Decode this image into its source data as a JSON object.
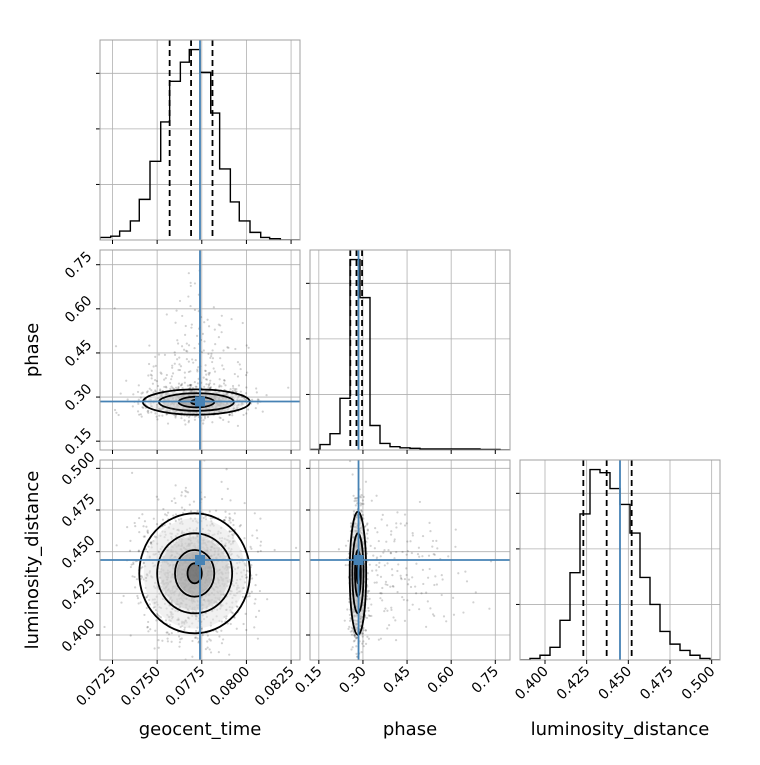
{
  "chart_data": {
    "type": "corner",
    "colors": {
      "truth": "#4682b4",
      "hist": "#000000",
      "quantile": "#000000",
      "contour": "#000000",
      "grid": "#b0b0b0",
      "frame": "#a0a0a0"
    },
    "grid": true,
    "parameters": [
      {
        "name": "geocent_time",
        "label": "geocent_time",
        "range": [
          0.0718,
          0.083
        ],
        "ticks": [
          0.0725,
          0.075,
          0.0775,
          0.08,
          0.0825
        ],
        "tick_labels": [
          "0.0725",
          "0.0750",
          "0.0775",
          "0.0800",
          "0.0825"
        ],
        "truth": 0.0774,
        "quantiles": [
          0.0757,
          0.0769,
          0.0781
        ]
      },
      {
        "name": "phase",
        "label": "phase",
        "range": [
          0.12,
          0.8
        ],
        "ticks": [
          0.15,
          0.3,
          0.45,
          0.6,
          0.75
        ],
        "tick_labels": [
          "0.15",
          "0.30",
          "0.45",
          "0.60",
          "0.75"
        ],
        "truth": 0.285,
        "quantiles": [
          0.257,
          0.278,
          0.297
        ]
      },
      {
        "name": "luminosity_distance",
        "label": "luminosity_distance",
        "range": [
          0.385,
          0.505
        ],
        "ticks": [
          0.4,
          0.425,
          0.45,
          0.475,
          0.5
        ],
        "tick_labels": [
          "0.400",
          "0.425",
          "0.450",
          "0.475",
          "0.500"
        ],
        "truth": 0.445,
        "quantiles": [
          0.423,
          0.437,
          0.452
        ]
      }
    ],
    "histograms": [
      {
        "parameter": "geocent_time",
        "bin_edges": [
          0.0718,
          0.0724,
          0.0729,
          0.0735,
          0.074,
          0.0746,
          0.0752,
          0.0757,
          0.0763,
          0.0768,
          0.0774,
          0.078,
          0.0785,
          0.0791,
          0.0796,
          0.0802,
          0.0808,
          0.0813,
          0.0819,
          0.0824,
          0.083
        ],
        "counts": [
          2,
          3,
          7,
          15,
          32,
          62,
          93,
          125,
          140,
          150,
          132,
          100,
          56,
          30,
          15,
          6,
          2,
          1,
          0,
          0
        ]
      },
      {
        "parameter": "phase",
        "bin_edges": [
          0.12,
          0.154,
          0.188,
          0.222,
          0.256,
          0.29,
          0.324,
          0.358,
          0.392,
          0.426,
          0.46,
          0.494,
          0.528,
          0.562,
          0.596,
          0.63,
          0.664,
          0.698,
          0.732,
          0.766,
          0.8
        ],
        "counts": [
          1,
          10,
          30,
          95,
          350,
          280,
          45,
          12,
          6,
          4,
          3,
          2,
          2,
          2,
          2,
          2,
          2,
          1,
          1,
          0
        ]
      },
      {
        "parameter": "luminosity_distance",
        "bin_edges": [
          0.385,
          0.391,
          0.397,
          0.403,
          0.409,
          0.415,
          0.421,
          0.427,
          0.433,
          0.439,
          0.445,
          0.451,
          0.457,
          0.463,
          0.469,
          0.475,
          0.481,
          0.487,
          0.493,
          0.499,
          0.505
        ],
        "counts": [
          0,
          1,
          3,
          8,
          25,
          55,
          92,
          120,
          118,
          108,
          98,
          80,
          52,
          35,
          18,
          10,
          6,
          3,
          1,
          0
        ]
      }
    ],
    "scatter_panels": [
      {
        "x": "geocent_time",
        "y": "phase",
        "center": [
          0.0772,
          0.283
        ],
        "contours": [
          {
            "rx": 0.0003,
            "ry": 0.008
          },
          {
            "rx": 0.001,
            "ry": 0.018
          },
          {
            "rx": 0.0021,
            "ry": 0.03
          },
          {
            "rx": 0.003,
            "ry": 0.043
          }
        ]
      },
      {
        "x": "geocent_time",
        "y": "luminosity_distance",
        "center": [
          0.0771,
          0.437
        ],
        "contours": [
          {
            "rx": 0.0004,
            "ry": 0.006
          },
          {
            "rx": 0.0011,
            "ry": 0.014
          },
          {
            "rx": 0.0021,
            "ry": 0.024
          },
          {
            "rx": 0.0031,
            "ry": 0.036
          }
        ]
      },
      {
        "x": "phase",
        "y": "luminosity_distance",
        "center": [
          0.283,
          0.437
        ],
        "contours": [
          {
            "rx": 0.004,
            "ry": 0.006
          },
          {
            "rx": 0.01,
            "ry": 0.014
          },
          {
            "rx": 0.019,
            "ry": 0.024
          },
          {
            "rx": 0.028,
            "ry": 0.037
          }
        ]
      }
    ]
  }
}
